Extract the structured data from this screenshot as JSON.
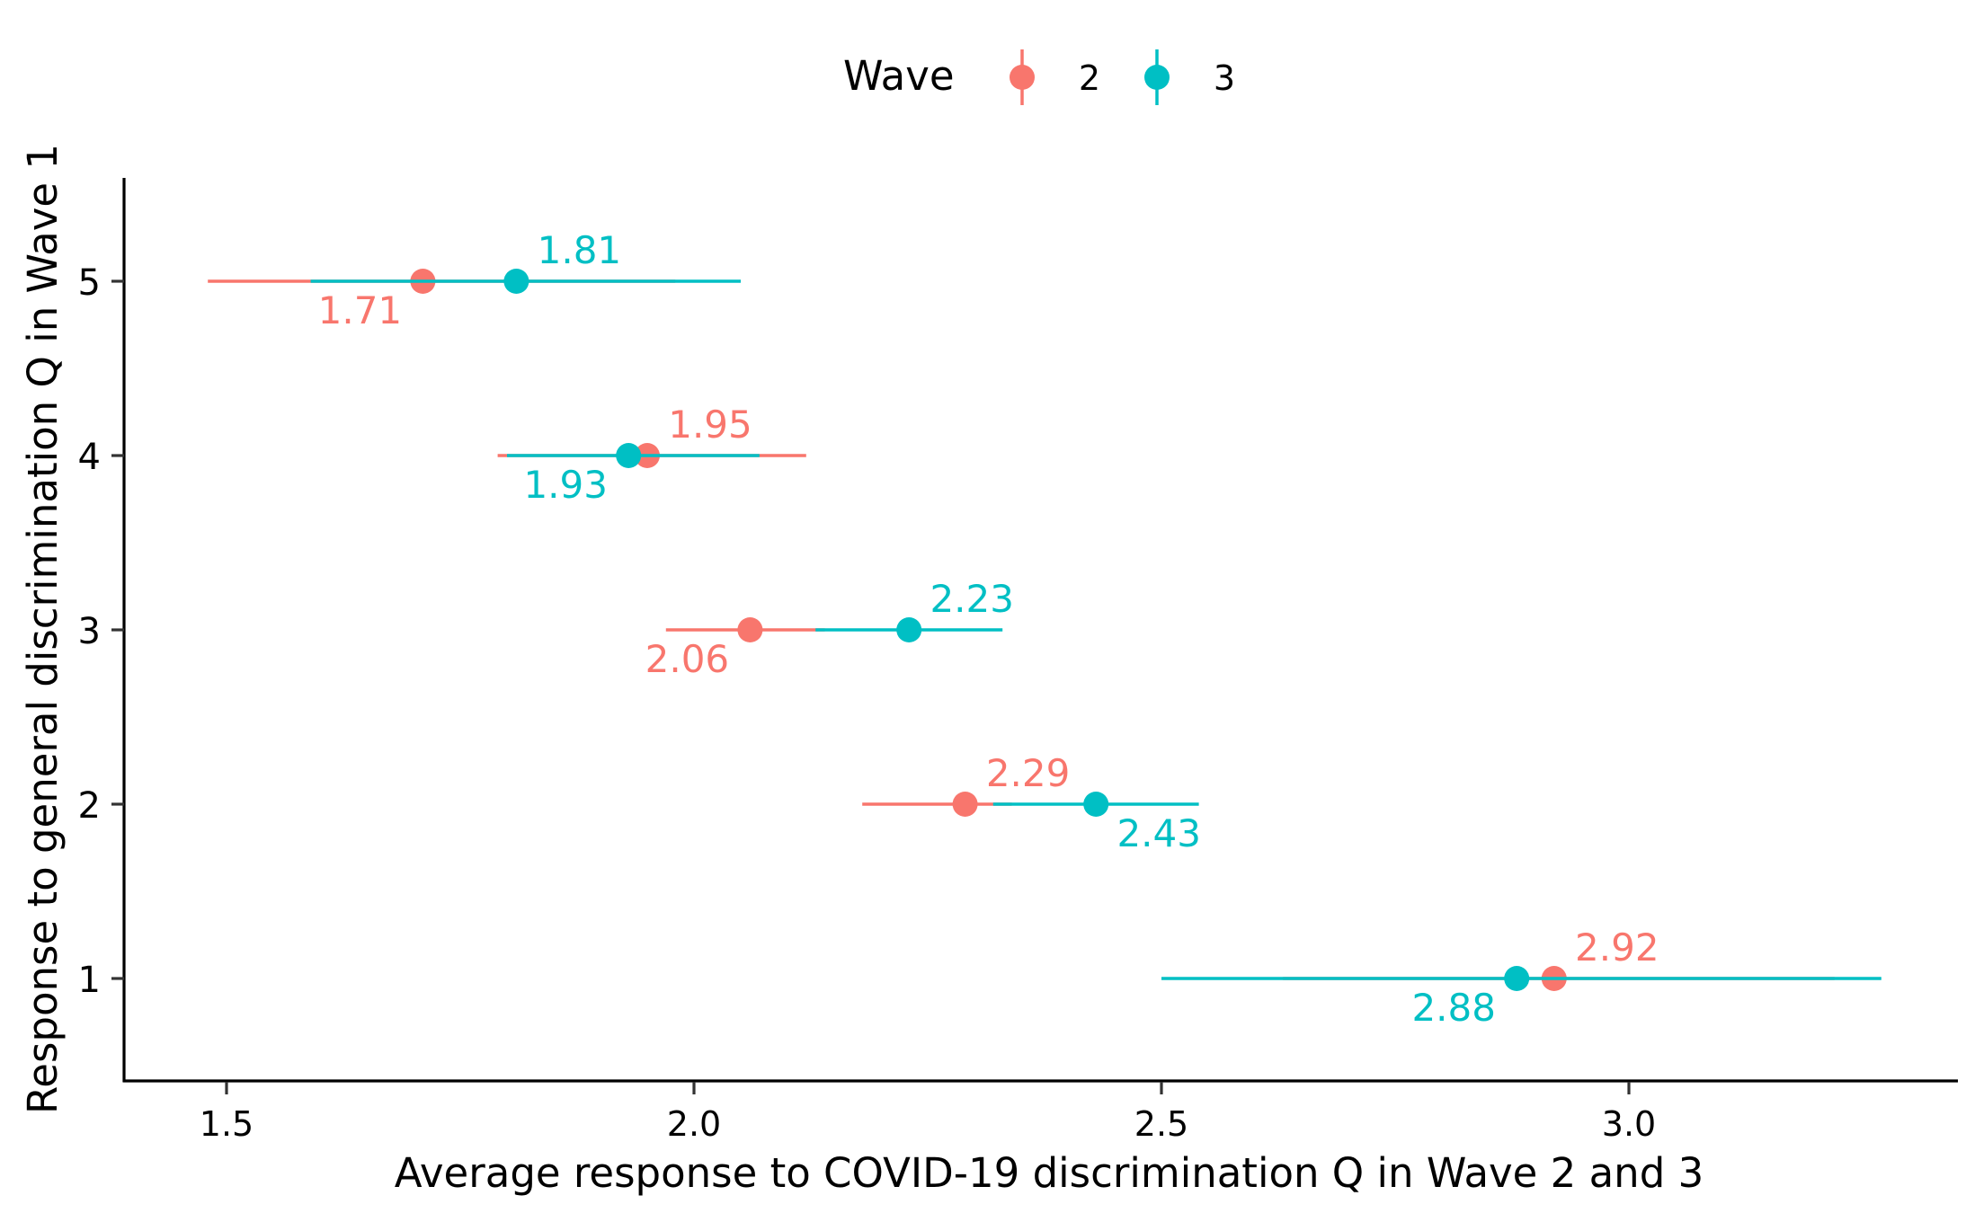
{
  "chart_data": {
    "type": "scatter",
    "title": "",
    "xlabel": "Average response to COVID-19 discrimination Q in Wave 2 and 3",
    "ylabel": "Response to general discrimination Q in Wave 1",
    "xlim": [
      1.4,
      3.7
    ],
    "ylim": [
      0.42,
      5.58
    ],
    "x_ticks": [
      1.5,
      2.0,
      2.5,
      3.0
    ],
    "x_tick_labels": [
      "1.5",
      "2.0",
      "2.5",
      "3.0"
    ],
    "y_ticks": [
      1,
      2,
      3,
      4,
      5
    ],
    "y_tick_labels": [
      "1",
      "2",
      "3",
      "4",
      "5"
    ],
    "grid": false,
    "legend": {
      "title": "Wave",
      "position": "top",
      "entries": [
        "2",
        "3"
      ]
    },
    "series": [
      {
        "name": "2",
        "color": "#F8766D",
        "points": [
          {
            "y": 5,
            "x": 1.71,
            "lo": 1.48,
            "hi": 1.98,
            "label": "1.71"
          },
          {
            "y": 4,
            "x": 1.95,
            "lo": 1.79,
            "hi": 2.12,
            "label": "1.95"
          },
          {
            "y": 3,
            "x": 2.06,
            "lo": 1.97,
            "hi": 2.14,
            "label": "2.06"
          },
          {
            "y": 2,
            "x": 2.29,
            "lo": 2.18,
            "hi": 2.34,
            "label": "2.29"
          },
          {
            "y": 1,
            "x": 2.92,
            "lo": 2.63,
            "hi": 3.22,
            "label": "2.92"
          }
        ]
      },
      {
        "name": "3",
        "color": "#00BFC4",
        "points": [
          {
            "y": 5,
            "x": 1.81,
            "lo": 1.59,
            "hi": 2.05,
            "label": "1.81"
          },
          {
            "y": 4,
            "x": 1.93,
            "lo": 1.8,
            "hi": 2.07,
            "label": "1.93"
          },
          {
            "y": 3,
            "x": 2.23,
            "lo": 2.13,
            "hi": 2.33,
            "label": "2.23"
          },
          {
            "y": 2,
            "x": 2.43,
            "lo": 2.32,
            "hi": 2.54,
            "label": "2.43"
          },
          {
            "y": 1,
            "x": 2.88,
            "lo": 2.5,
            "hi": 3.27,
            "label": "2.88"
          }
        ]
      }
    ]
  }
}
